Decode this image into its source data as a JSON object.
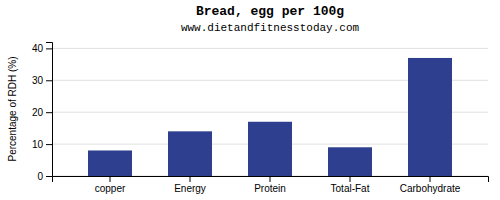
{
  "chart_data": {
    "type": "bar",
    "title": "Bread, egg per 100g",
    "subtitle": "www.dietandfitnesstoday.com",
    "categories": [
      "copper",
      "Energy",
      "Protein",
      "Total-Fat",
      "Carbohydrate"
    ],
    "values": [
      8,
      14,
      17,
      9,
      37
    ],
    "color": "#2d3f8e",
    "ylabel": "Percentage of RDH (%)",
    "ylim": [
      0,
      42
    ],
    "yticks": [
      0,
      10,
      20,
      30,
      40
    ],
    "grid": true
  }
}
